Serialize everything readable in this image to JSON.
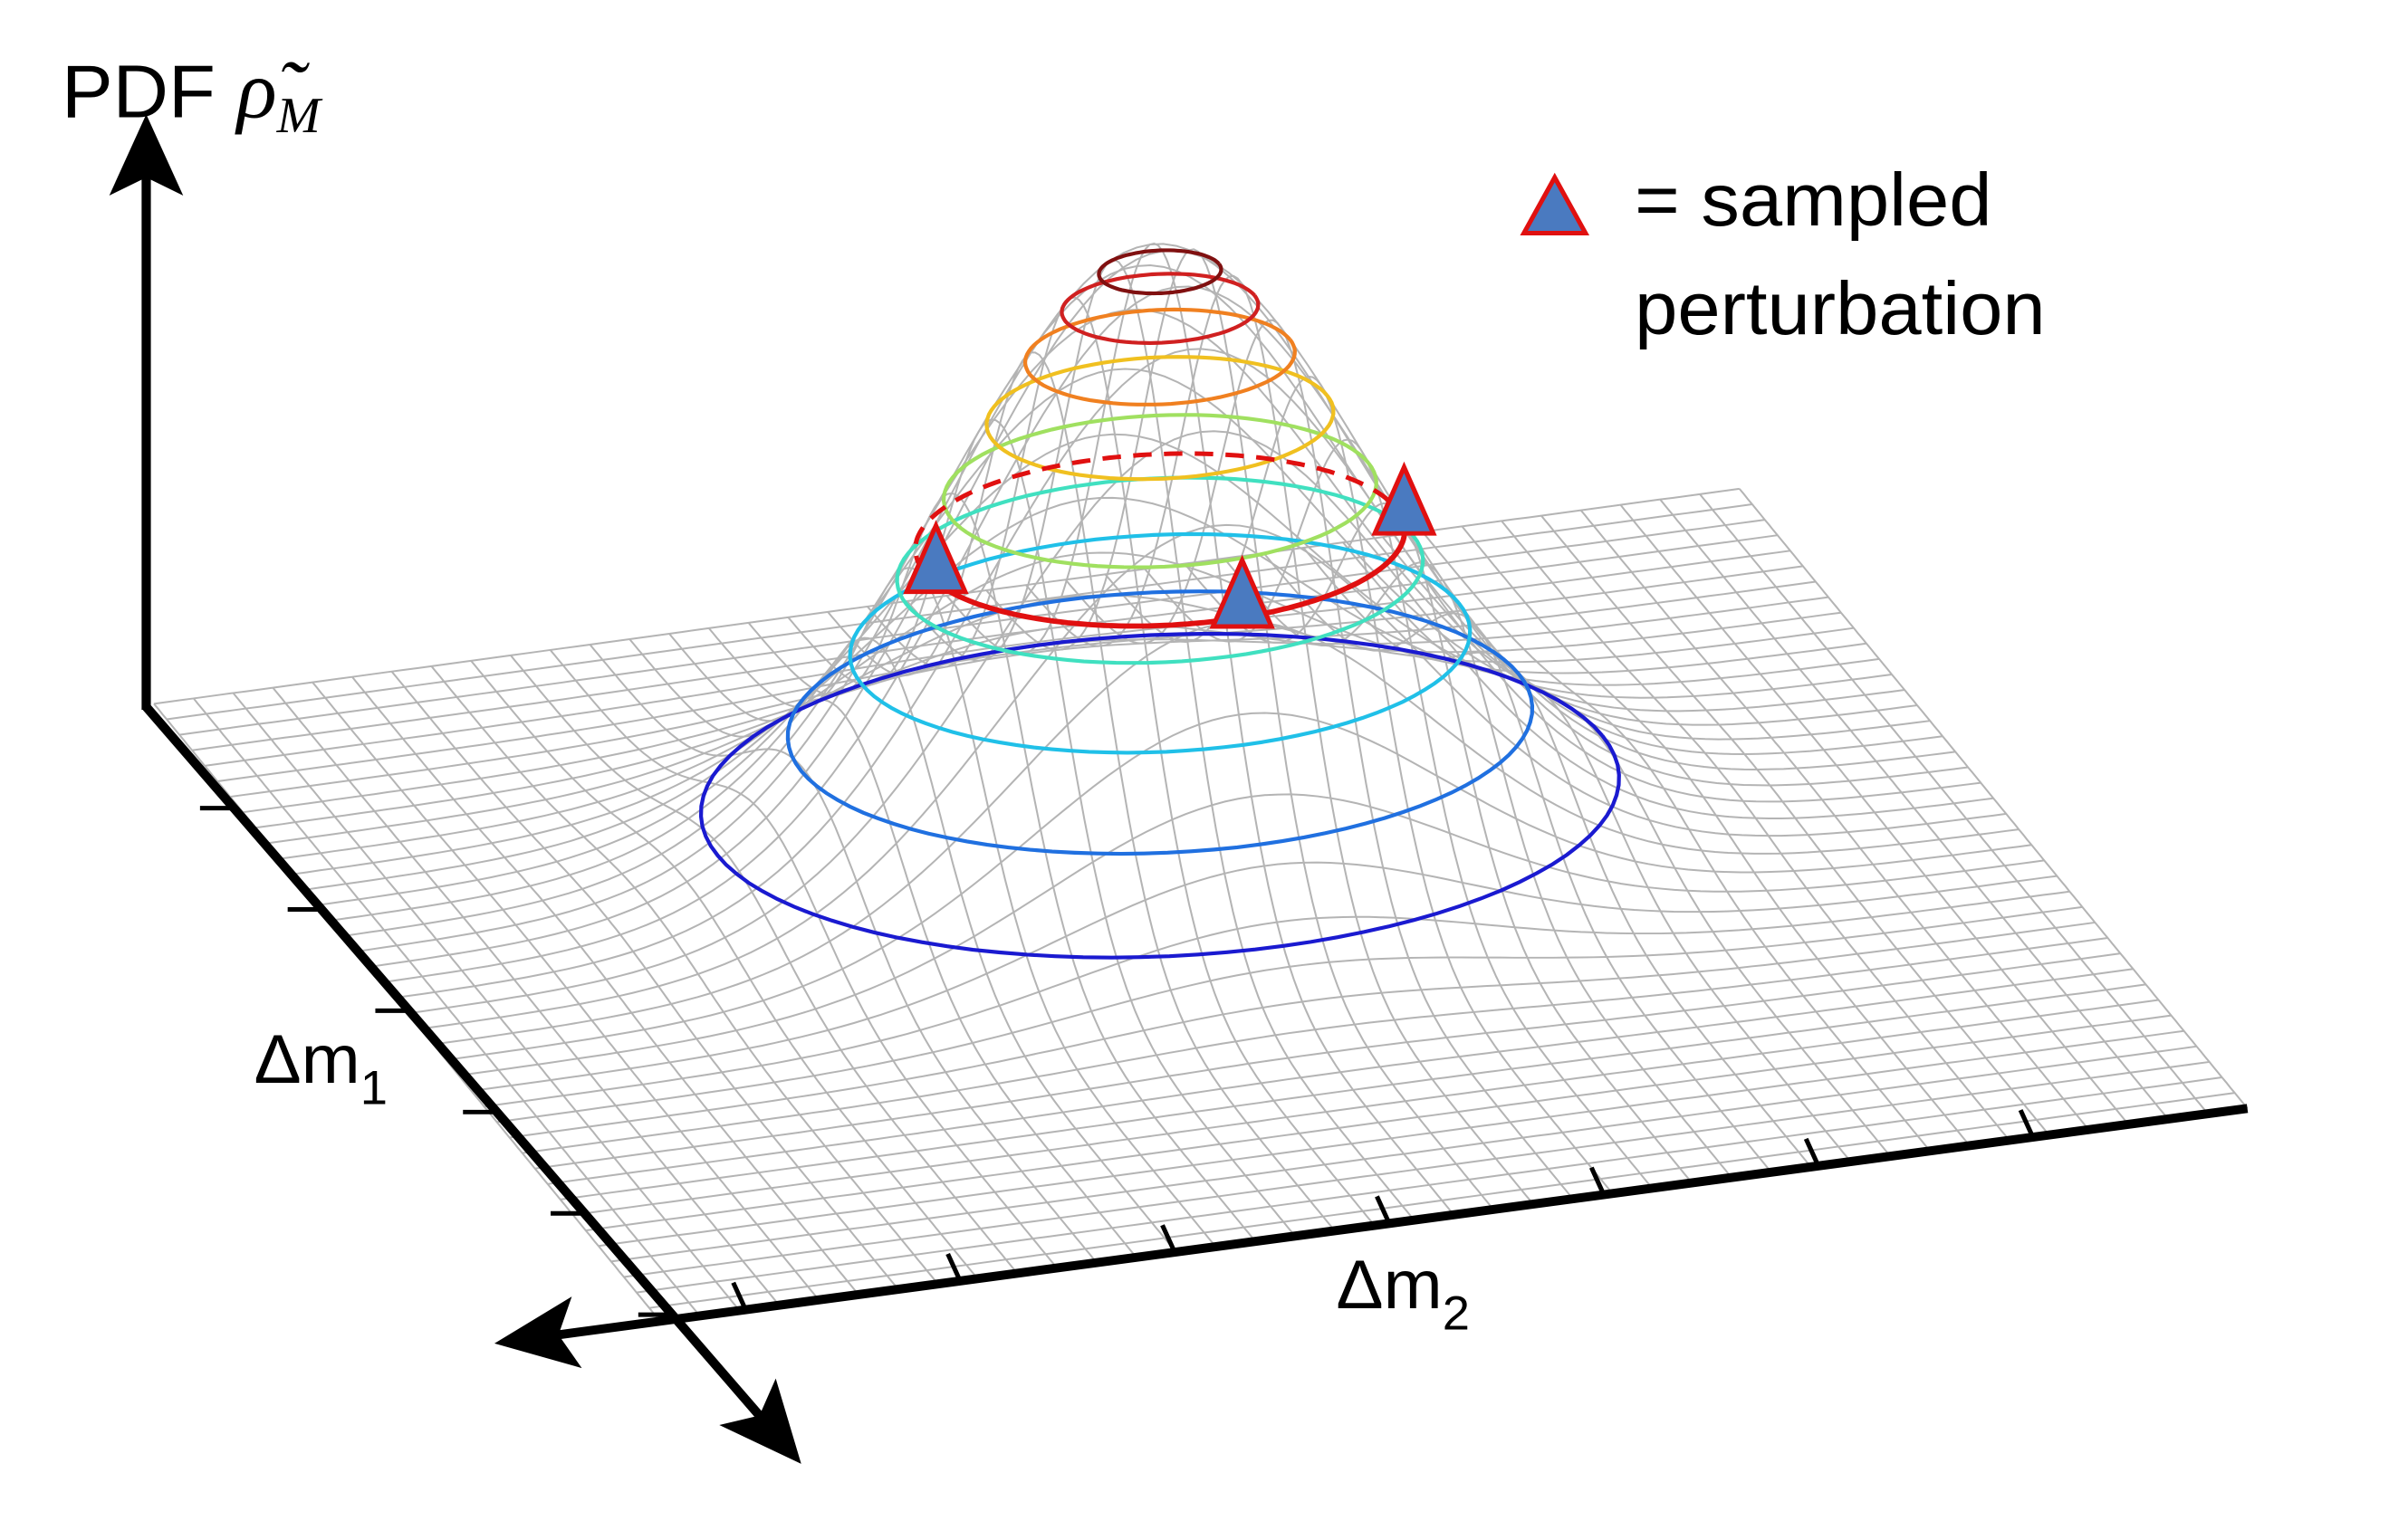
{
  "header": {
    "axis_label": "PDF",
    "symbol": "ρ̃",
    "symbol_subscript": "M"
  },
  "legend": {
    "line1": "= sampled",
    "line2": "perturbation"
  },
  "axes": {
    "m1": {
      "symbol": "Δm",
      "subscript": "1"
    },
    "m2": {
      "symbol": "Δm",
      "subscript": "2"
    }
  }
}
